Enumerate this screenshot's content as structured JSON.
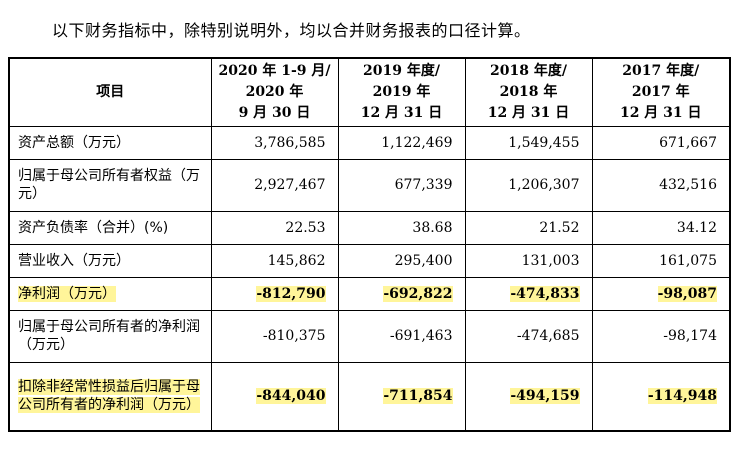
{
  "intro": "以下财务指标中，除特别说明外，均以合并财务报表的口径计算。",
  "header": {
    "item": "项目",
    "periods": [
      [
        "2020 年 1-9 月/",
        "2020 年",
        "9 月 30 日"
      ],
      [
        "2019 年度/",
        "2019 年",
        "12 月 31 日"
      ],
      [
        "2018 年度/",
        "2018 年",
        "12 月 31 日"
      ],
      [
        "2017 年度/",
        "2017 年",
        "12 月 31 日"
      ]
    ]
  },
  "rows": [
    {
      "label": "资产总额（万元）",
      "values": [
        "3,786,585",
        "1,122,469",
        "1,549,455",
        "671,667"
      ],
      "highlight": false
    },
    {
      "label": "归属于母公司所有者权益（万元）",
      "values": [
        "2,927,467",
        "677,339",
        "1,206,307",
        "432,516"
      ],
      "highlight": false
    },
    {
      "label": "资产负债率（合并）(%)",
      "values": [
        "22.53",
        "38.68",
        "21.52",
        "34.12"
      ],
      "highlight": false
    },
    {
      "label": "营业收入（万元）",
      "values": [
        "145,862",
        "295,400",
        "131,003",
        "161,075"
      ],
      "highlight": false
    },
    {
      "label": "净利润（万元）",
      "values": [
        "-812,790",
        "-692,822",
        "-474,833",
        "-98,087"
      ],
      "highlight": true
    },
    {
      "label": "归属于母公司所有者的净利润（万元）",
      "values": [
        "-810,375",
        "-691,463",
        "-474,685",
        "-98,174"
      ],
      "highlight": false
    },
    {
      "label": "扣除非经常性损益后归属于母公司所有者的净利润（万元）",
      "values": [
        "-844,040",
        "-711,854",
        "-494,159",
        "-114,948"
      ],
      "highlight": true
    }
  ],
  "colors": {
    "highlight": "#fff59a",
    "border": "#000000"
  }
}
